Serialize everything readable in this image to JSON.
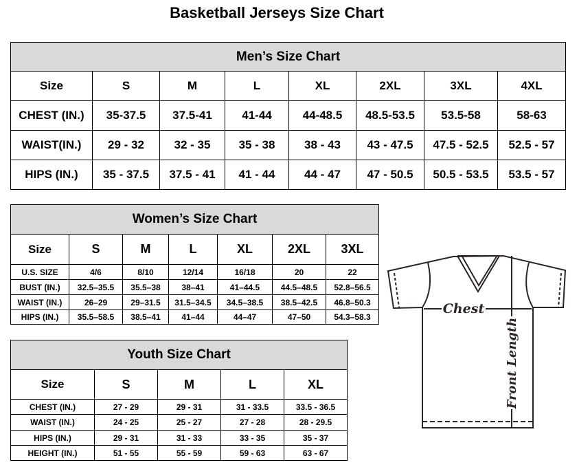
{
  "title": "Basketball Jerseys Size Chart",
  "men": {
    "heading": "Men’s Size Chart",
    "rows": [
      [
        "Size",
        "S",
        "M",
        "L",
        "XL",
        "2XL",
        "3XL",
        "4XL"
      ],
      [
        "CHEST (IN.)",
        "35-37.5",
        "37.5-41",
        "41-44",
        "44-48.5",
        "48.5-53.5",
        "53.5-58",
        "58-63"
      ],
      [
        "WAIST(IN.)",
        "29 - 32",
        "32 - 35",
        "35 - 38",
        "38 - 43",
        "43 - 47.5",
        "47.5 - 52.5",
        "52.5 - 57"
      ],
      [
        "HIPS (IN.)",
        "35 - 37.5",
        "37.5 - 41",
        "41 - 44",
        "44 - 47",
        "47 - 50.5",
        "50.5 - 53.5",
        "53.5 - 57"
      ]
    ]
  },
  "women": {
    "heading": "Women’s Size Chart",
    "rows": [
      [
        "Size",
        "S",
        "M",
        "L",
        "XL",
        "2XL",
        "3XL"
      ],
      [
        "U.S. SIZE",
        "4/6",
        "8/10",
        "12/14",
        "16/18",
        "20",
        "22"
      ],
      [
        "BUST (IN.)",
        "32.5–35.5",
        "35.5–38",
        "38–41",
        "41–44.5",
        "44.5–48.5",
        "52.8–56.5"
      ],
      [
        "WAIST (IN.)",
        "26–29",
        "29–31.5",
        "31.5–34.5",
        "34.5–38.5",
        "38.5–42.5",
        "46.8–50.3"
      ],
      [
        "HIPS (IN.)",
        "35.5–58.5",
        "38.5–41",
        "41–44",
        "44–47",
        "47–50",
        "54.3–58.3"
      ]
    ]
  },
  "youth": {
    "heading": "Youth Size Chart",
    "rows": [
      [
        "Size",
        "S",
        "M",
        "L",
        "XL"
      ],
      [
        "CHEST (IN.)",
        "27 - 29",
        "29 - 31",
        "31 - 33.5",
        "33.5 - 36.5"
      ],
      [
        "WAIST (IN.)",
        "24 - 25",
        "25 - 27",
        "27 - 28",
        "28 - 29.5"
      ],
      [
        "HIPS (IN.)",
        "29 - 31",
        "31 - 33",
        "33 - 35",
        "35 - 37"
      ],
      [
        "HEIGHT (IN.)",
        "51 - 55",
        "55 - 59",
        "59 - 63",
        "63 - 67"
      ]
    ]
  },
  "diagram": {
    "chest_label": "Chest",
    "length_label": "Front Length"
  },
  "colors": {
    "header_bg": "#d9d9d9",
    "shirt_stroke": "#2b2422"
  }
}
